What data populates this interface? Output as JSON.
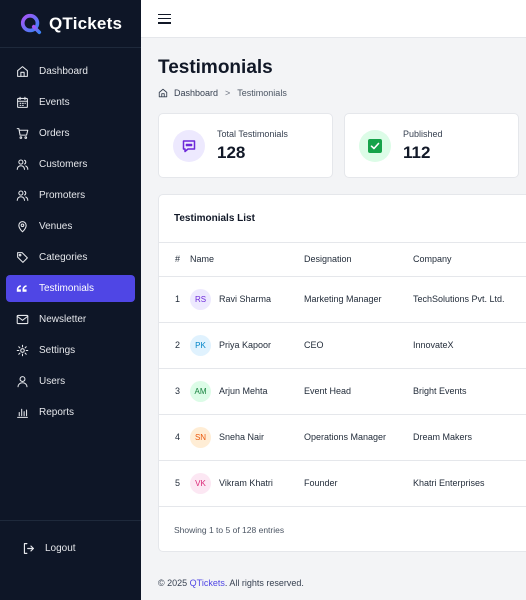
{
  "brand": {
    "name": "QTickets"
  },
  "sidebar": {
    "items": [
      {
        "label": "Dashboard",
        "icon": "dashboard-icon",
        "name": "sidebar-item-dashboard",
        "active": false
      },
      {
        "label": "Events",
        "icon": "calendar-icon",
        "name": "sidebar-item-events",
        "active": false
      },
      {
        "label": "Orders",
        "icon": "cart-icon",
        "name": "sidebar-item-orders",
        "active": false
      },
      {
        "label": "Customers",
        "icon": "users-icon",
        "name": "sidebar-item-customers",
        "active": false
      },
      {
        "label": "Promoters",
        "icon": "user-group-icon",
        "name": "sidebar-item-promoters",
        "active": false
      },
      {
        "label": "Venues",
        "icon": "map-pin-icon",
        "name": "sidebar-item-venues",
        "active": false
      },
      {
        "label": "Categories",
        "icon": "tag-icon",
        "name": "sidebar-item-categories",
        "active": false
      },
      {
        "label": "Testimonials",
        "icon": "quote-icon",
        "name": "sidebar-item-testimonials",
        "active": true
      },
      {
        "label": "Newsletter",
        "icon": "mail-icon",
        "name": "sidebar-item-newsletter",
        "active": false
      },
      {
        "label": "Settings",
        "icon": "gear-icon",
        "name": "sidebar-item-settings",
        "active": false
      },
      {
        "label": "Users",
        "icon": "user-icon",
        "name": "sidebar-item-users",
        "active": false
      },
      {
        "label": "Reports",
        "icon": "bar-chart-icon",
        "name": "sidebar-item-reports",
        "active": false
      }
    ],
    "logout_label": "Logout"
  },
  "page": {
    "title": "Testimonials",
    "breadcrumb": {
      "home": "Dashboard",
      "separator": ">",
      "current": "Testimonials"
    }
  },
  "stats": [
    {
      "label": "Total Testimonials",
      "value": "128",
      "icon": "chat-bubble-icon",
      "color": "#6d28d9"
    },
    {
      "label": "Published",
      "value": "112",
      "icon": "check-square-icon",
      "color": "#16a34a"
    }
  ],
  "list": {
    "title": "Testimonials List",
    "columns": {
      "num": "#",
      "name": "Name",
      "designation": "Designation",
      "company": "Company"
    },
    "rows": [
      {
        "num": "1",
        "initials": "RS",
        "name": "Ravi Sharma",
        "designation": "Marketing Manager",
        "company": "TechSolutions Pvt. Ltd.",
        "avatar_bg": "#ede9fe",
        "avatar_fg": "#6d28d9"
      },
      {
        "num": "2",
        "initials": "PK",
        "name": "Priya Kapoor",
        "designation": "CEO",
        "company": "InnovateX",
        "avatar_bg": "#e0f2fe",
        "avatar_fg": "#0284c7"
      },
      {
        "num": "3",
        "initials": "AM",
        "name": "Arjun Mehta",
        "designation": "Event Head",
        "company": "Bright Events",
        "avatar_bg": "#dcfce7",
        "avatar_fg": "#15803d"
      },
      {
        "num": "4",
        "initials": "SN",
        "name": "Sneha Nair",
        "designation": "Operations Manager",
        "company": "Dream Makers",
        "avatar_bg": "#ffedd5",
        "avatar_fg": "#ea580c"
      },
      {
        "num": "5",
        "initials": "VK",
        "name": "Vikram Khatri",
        "designation": "Founder",
        "company": "Khatri Enterprises",
        "avatar_bg": "#fce7f3",
        "avatar_fg": "#db2777"
      }
    ],
    "footer": "Showing 1 to 5 of 128 entries"
  },
  "footer": {
    "prefix": "© 2025 ",
    "brand": "QTickets",
    "suffix": ". All rights reserved."
  },
  "colors": {
    "accent": "#4f46e5",
    "sidebar_bg": "#0e1627"
  }
}
